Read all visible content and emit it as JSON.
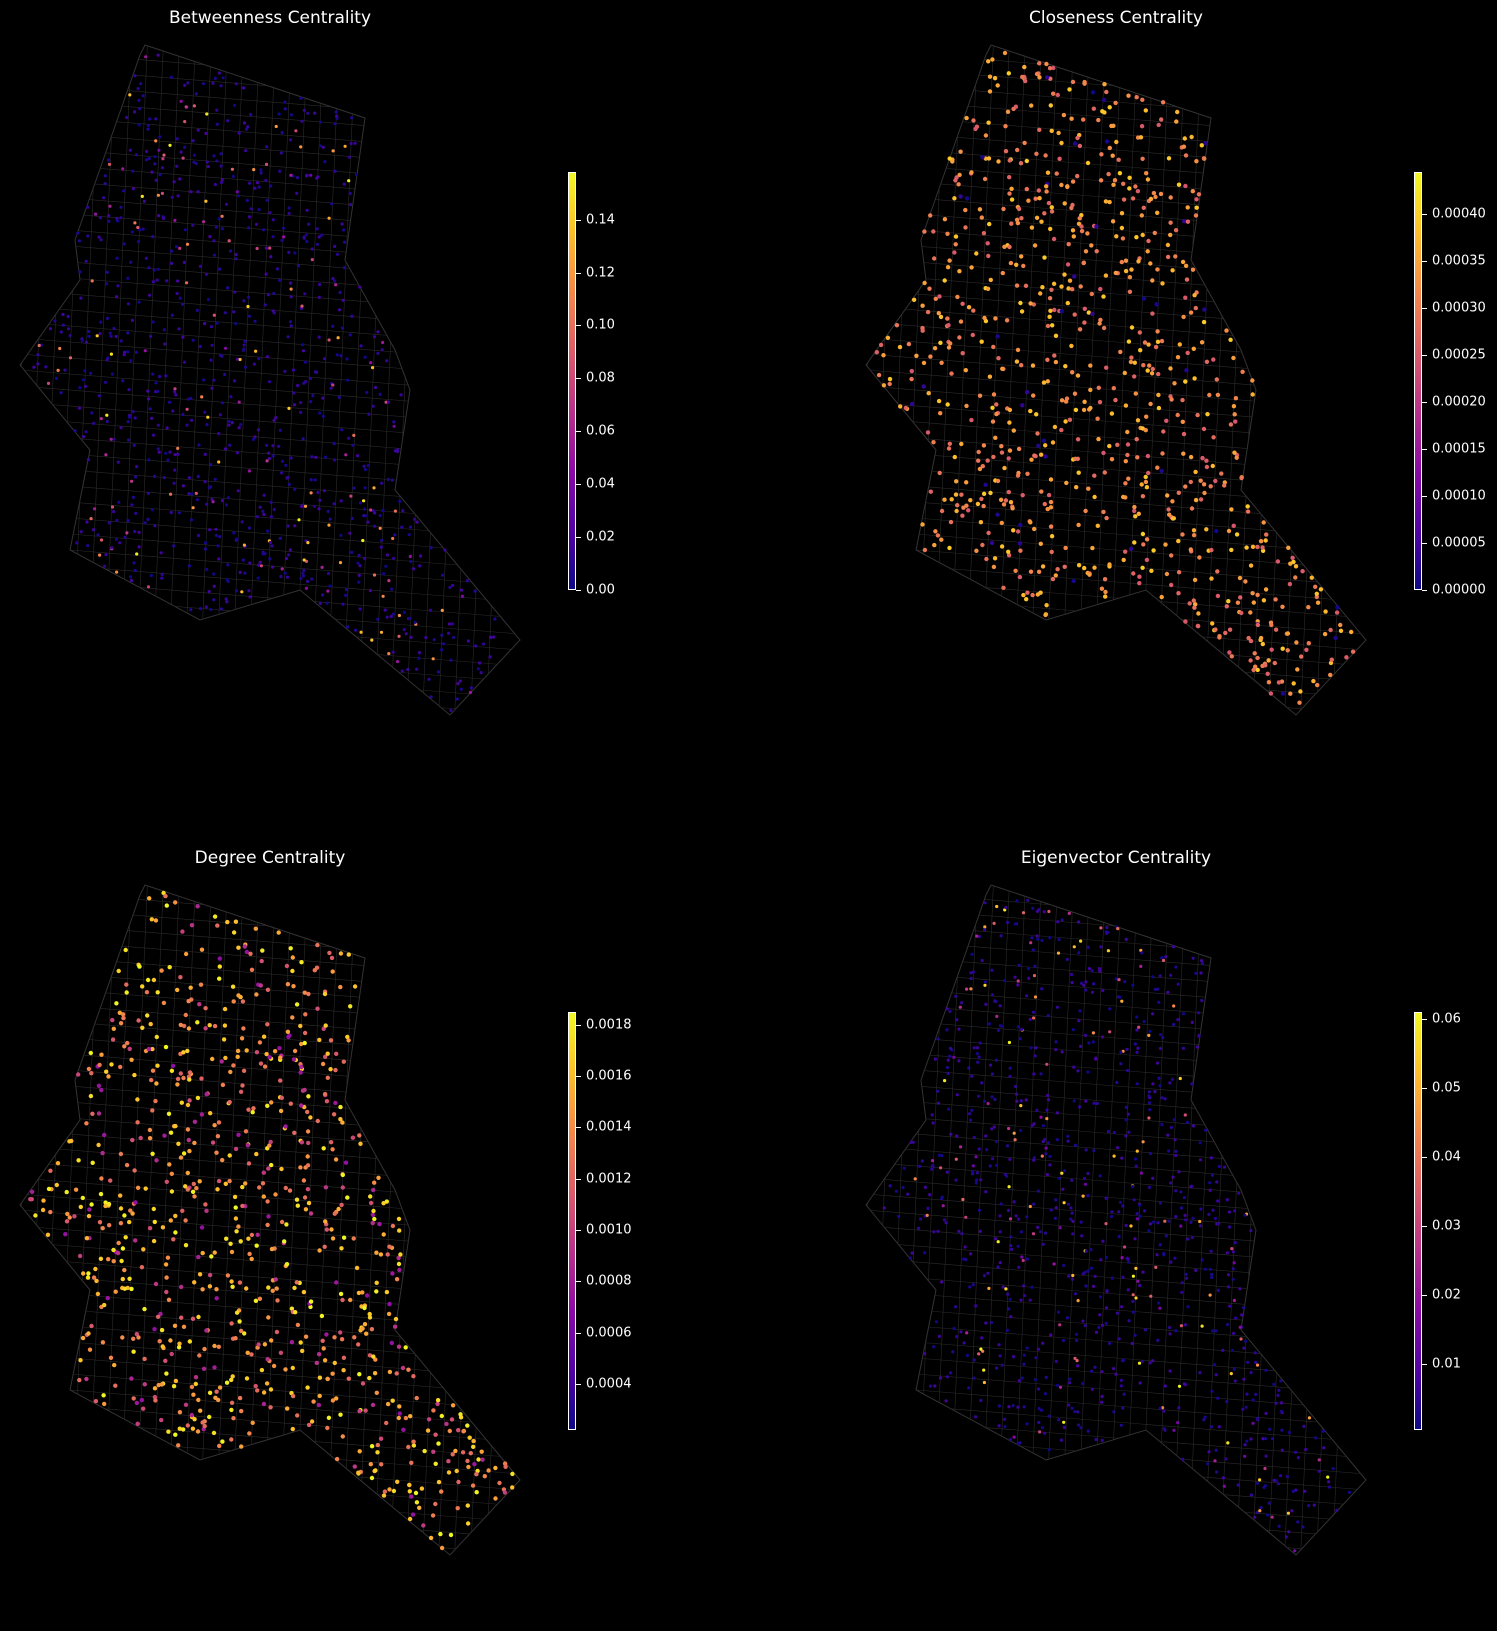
{
  "colormap": [
    "#0d0887",
    "#5302a3",
    "#8b0aa5",
    "#b83289",
    "#db5c68",
    "#f48849",
    "#febd2a",
    "#f0f921"
  ],
  "chart_data": [
    {
      "type": "network-map",
      "title": "Betweenness Centrality",
      "colorbar": {
        "range": [
          0,
          0.158
        ],
        "ticks": [
          0.0,
          0.02,
          0.04,
          0.06,
          0.08,
          0.1,
          0.12,
          0.14
        ],
        "tick_labels": [
          "0.00",
          "0.02",
          "0.04",
          "0.06",
          "0.08",
          "0.10",
          "0.12",
          "0.14"
        ]
      },
      "node_color_distribution": "mostly-low"
    },
    {
      "type": "network-map",
      "title": "Closeness Centrality",
      "colorbar": {
        "range": [
          0,
          0.000445
        ],
        "ticks": [
          0.0,
          5e-05,
          0.0001,
          0.00015,
          0.0002,
          0.00025,
          0.0003,
          0.00035,
          0.0004
        ],
        "tick_labels": [
          "0.00000",
          "0.00005",
          "0.00010",
          "0.00015",
          "0.00020",
          "0.00025",
          "0.00030",
          "0.00035",
          "0.00040"
        ]
      },
      "node_color_distribution": "mostly-high"
    },
    {
      "type": "network-map",
      "title": "Degree Centrality",
      "colorbar": {
        "range": [
          0.00022,
          0.00185
        ],
        "ticks": [
          0.0004,
          0.0006,
          0.0008,
          0.001,
          0.0012,
          0.0014,
          0.0016,
          0.0018
        ],
        "tick_labels": [
          "0.0004",
          "0.0006",
          "0.0008",
          "0.0010",
          "0.0012",
          "0.0014",
          "0.0016",
          "0.0018"
        ]
      },
      "node_color_distribution": "mixed-high"
    },
    {
      "type": "network-map",
      "title": "Eigenvector Centrality",
      "colorbar": {
        "range": [
          0.0005,
          0.061
        ],
        "ticks": [
          0.01,
          0.02,
          0.03,
          0.04,
          0.05,
          0.06
        ],
        "tick_labels": [
          "0.01",
          "0.02",
          "0.03",
          "0.04",
          "0.05",
          "0.06"
        ]
      },
      "node_color_distribution": "mostly-low"
    }
  ]
}
